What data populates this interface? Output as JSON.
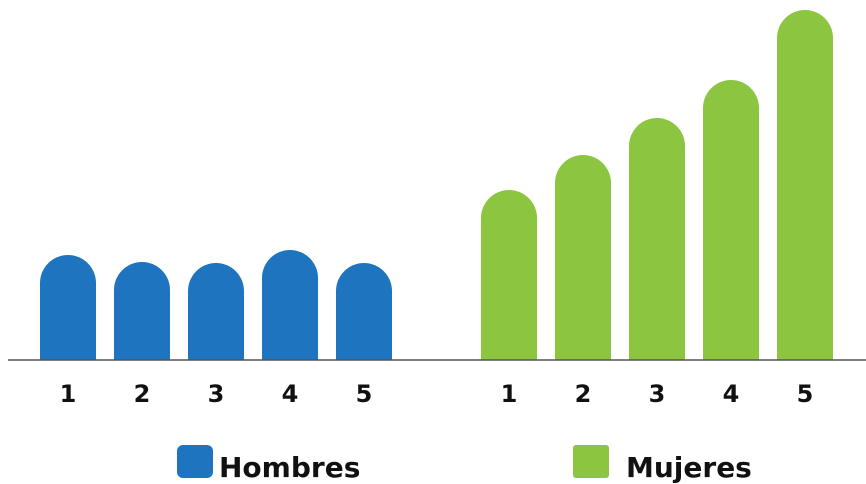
{
  "chart_data": {
    "type": "bar",
    "groups": [
      {
        "name": "Hombres",
        "color": "#1f74c0",
        "categories": [
          "1",
          "2",
          "3",
          "4",
          "5"
        ],
        "values": [
          105,
          98,
          97,
          110,
          97
        ]
      },
      {
        "name": "Mujeres",
        "color": "#8cc53f",
        "categories": [
          "1",
          "2",
          "3",
          "4",
          "5"
        ],
        "values": [
          170,
          205,
          242,
          280,
          350
        ]
      }
    ],
    "legend": {
      "position": "bottom"
    },
    "grid": false
  }
}
